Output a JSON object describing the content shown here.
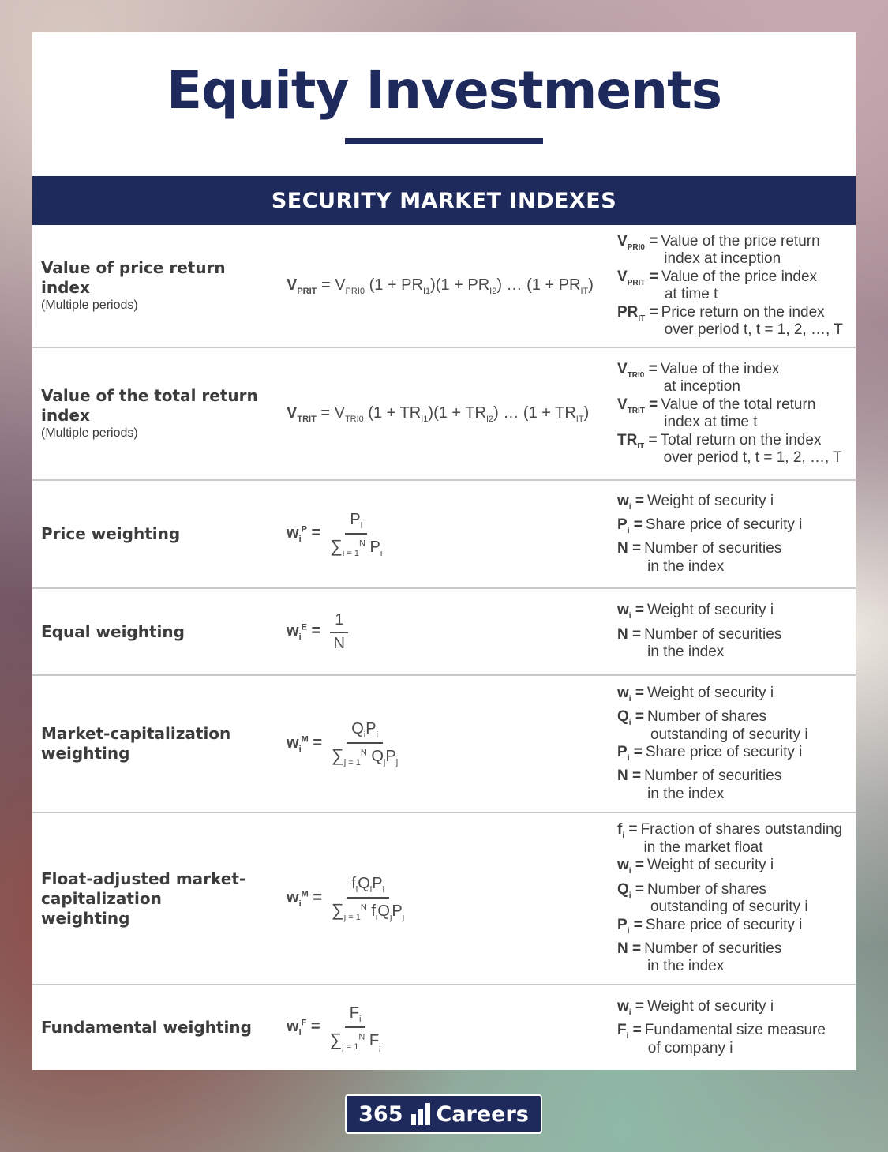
{
  "title": "Equity Investments",
  "section": "SECURITY MARKET INDEXES",
  "rows": [
    {
      "name": "Value of price return index",
      "sub": "(Multiple periods)",
      "defs": [
        {
          "sym": "V",
          "sub": "PRI0",
          "eq": " = ",
          "text": "Value of the price return",
          "cont": "index at inception"
        },
        {
          "sym": "V",
          "sub": "PRIT",
          "eq": " = ",
          "text": "Value of the price index",
          "cont": "at time t"
        },
        {
          "sym": "PR",
          "sub": "IT",
          "eq": " = ",
          "text": "Price return on the index",
          "cont": "over period t, t = 1, 2, …, T"
        }
      ]
    },
    {
      "name": "Value of the total return index",
      "sub": "(Multiple periods)",
      "defs": [
        {
          "sym": "V",
          "sub": "TRI0",
          "eq": " = ",
          "text": "Value of the index",
          "cont": "at inception"
        },
        {
          "sym": "V",
          "sub": "TRIT",
          "eq": " = ",
          "text": "Value of the total return",
          "cont": "index at time t"
        },
        {
          "sym": "TR",
          "sub": "IT",
          "eq": " = ",
          "text": "Total return on the index",
          "cont": "over period t, t = 1, 2, …, T"
        }
      ]
    },
    {
      "name": "Price weighting",
      "defs": [
        {
          "sym": "w",
          "sub": "i",
          "eq": " = ",
          "text": "Weight of security i",
          "cont": ""
        },
        {
          "sym": "P",
          "sub": "i",
          "eq": " = ",
          "text": "Share price of security i",
          "cont": ""
        },
        {
          "sym": "N",
          "sub": "",
          "eq": " = ",
          "text": "Number of securities",
          "cont": "in the index"
        }
      ]
    },
    {
      "name": "Equal weighting",
      "defs": [
        {
          "sym": "w",
          "sub": "i",
          "eq": " = ",
          "text": "Weight of security i",
          "cont": ""
        },
        {
          "sym": "N",
          "sub": "",
          "eq": " = ",
          "text": "Number of securities",
          "cont": "in the index"
        }
      ]
    },
    {
      "name": "Market-capitalization weighting",
      "defs": [
        {
          "sym": "w",
          "sub": "i",
          "eq": " = ",
          "text": "Weight of security i",
          "cont": ""
        },
        {
          "sym": "Q",
          "sub": "i",
          "eq": " = ",
          "text": "Number of shares",
          "cont": "outstanding of security i"
        },
        {
          "sym": "P",
          "sub": "i",
          "eq": " = ",
          "text": "Share price of security i",
          "cont": ""
        },
        {
          "sym": "N",
          "sub": "",
          "eq": " = ",
          "text": "Number of securities",
          "cont": "in the index"
        }
      ]
    },
    {
      "name": "Float-adjusted market-capitalization weighting",
      "defs": [
        {
          "sym": "f",
          "sub": "i",
          "eq": " = ",
          "text": "Fraction of shares outstanding",
          "cont": "in the market float"
        },
        {
          "sym": "w",
          "sub": "i",
          "eq": " = ",
          "text": "Weight of security i",
          "cont": ""
        },
        {
          "sym": "Q",
          "sub": "i",
          "eq": " = ",
          "text": "Number of shares",
          "cont": "outstanding of security i"
        },
        {
          "sym": "P",
          "sub": "i",
          "eq": " = ",
          "text": "Share price of security i",
          "cont": ""
        },
        {
          "sym": "N",
          "sub": "",
          "eq": " = ",
          "text": "Number of securities",
          "cont": "in the index"
        }
      ]
    },
    {
      "name": "Fundamental weighting",
      "defs": [
        {
          "sym": "w",
          "sub": "i",
          "eq": " = ",
          "text": "Weight of security i",
          "cont": ""
        },
        {
          "sym": "F",
          "sub": "i",
          "eq": " = ",
          "text": "Fundamental size measure",
          "cont": "of company i"
        }
      ]
    }
  ],
  "logo": {
    "left": "365",
    "right": "Careers"
  }
}
